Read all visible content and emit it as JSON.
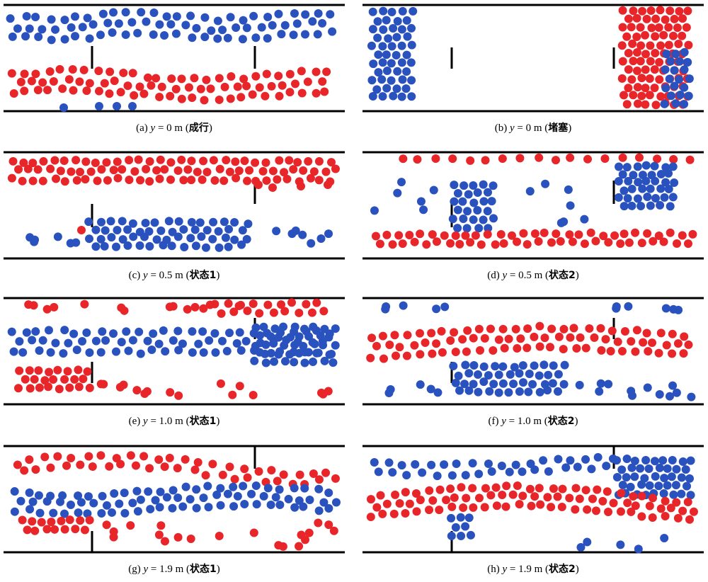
{
  "colors": {
    "blue": "#2a52be",
    "red": "#e8262a",
    "wall": "#000000"
  },
  "panels": [
    {
      "key": "a",
      "label_prefix": "(a) ",
      "y_symbol": "y",
      "value_text": " = 0 m (",
      "state": "成行",
      "label_suffix": ")",
      "door_ticks": [
        "left-gap",
        "right-gap"
      ],
      "pattern": "two-lanes-top-blue-bottom-red"
    },
    {
      "key": "b",
      "label_prefix": "(b) ",
      "y_symbol": "y",
      "value_text": " = 0 m (",
      "state": "堵塞",
      "label_suffix": ")",
      "door_ticks": [
        "left-gap",
        "right-gap"
      ],
      "pattern": "clogged-blue-left-red-right"
    },
    {
      "key": "c",
      "label_prefix": "(c) ",
      "y_symbol": "y",
      "value_text": " = 0.5 m (",
      "state": "状态1",
      "label_suffix": ")",
      "door_ticks": [
        "left-down",
        "right-up"
      ],
      "pattern": "red-top-blue-bottom"
    },
    {
      "key": "d",
      "label_prefix": "(d) ",
      "y_symbol": "y",
      "value_text": " = 0.5 m (",
      "state": "状态2",
      "label_suffix": ")",
      "door_ticks": [
        "left-down",
        "right-up"
      ],
      "pattern": "scattered-clusters"
    },
    {
      "key": "e",
      "label_prefix": "(e) ",
      "y_symbol": "y",
      "value_text": " = 1.0 m (",
      "state": "状态1",
      "label_suffix": ")",
      "door_ticks": [
        "left-down",
        "right-up"
      ],
      "pattern": "red-top-blue-middle-red-bottom"
    },
    {
      "key": "f",
      "label_prefix": "(f) ",
      "y_symbol": "y",
      "value_text": " = 1.0 m (",
      "state": "状态2",
      "label_suffix": ")",
      "door_ticks": [
        "left-down",
        "right-up"
      ],
      "pattern": "blue-top-red-middle-blue-bottom"
    },
    {
      "key": "g",
      "label_prefix": "(g) ",
      "y_symbol": "y",
      "value_text": " = 1.9 m (",
      "state": "状态1",
      "label_suffix": ")",
      "door_ticks": [
        "left-bottom",
        "right-top"
      ],
      "pattern": "mixed-three-lanes"
    },
    {
      "key": "h",
      "label_prefix": "(h) ",
      "y_symbol": "y",
      "value_text": " = 1.9 m (",
      "state": "状态2",
      "label_suffix": ")",
      "door_ticks": [
        "left-bottom",
        "right-top"
      ],
      "pattern": "blue-top-red-band-bottom-scatter"
    }
  ]
}
